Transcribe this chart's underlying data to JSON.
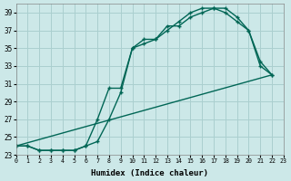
{
  "xlabel": "Humidex (Indice chaleur)",
  "bg_color": "#cce8e8",
  "grid_color": "#aacfcf",
  "line_color": "#006655",
  "xlim": [
    0,
    23
  ],
  "ylim": [
    23,
    40
  ],
  "xticks": [
    0,
    1,
    2,
    3,
    4,
    5,
    6,
    7,
    8,
    9,
    10,
    11,
    12,
    13,
    14,
    15,
    16,
    17,
    18,
    19,
    20,
    21,
    22,
    23
  ],
  "yticks": [
    23,
    25,
    27,
    29,
    31,
    33,
    35,
    37,
    39
  ],
  "line1_x": [
    0,
    1,
    2,
    3,
    4,
    5,
    6,
    7,
    8,
    9,
    10,
    11,
    12,
    13,
    14,
    15,
    16,
    17,
    18,
    19,
    20,
    21,
    22
  ],
  "line1_y": [
    24,
    24,
    23.5,
    23.5,
    23.5,
    23.5,
    24,
    24.5,
    27,
    30,
    35,
    36,
    36,
    37,
    38,
    39,
    39.5,
    39.5,
    39.5,
    38.5,
    37,
    33.5,
    32
  ],
  "line2_x": [
    0,
    1,
    2,
    3,
    4,
    5,
    6,
    7,
    8,
    9,
    10,
    11,
    12,
    13,
    14,
    15,
    16,
    17,
    18,
    19,
    20,
    21,
    22
  ],
  "line2_y": [
    24,
    24,
    23.5,
    23.5,
    23.5,
    23.5,
    24,
    27,
    30.5,
    30.5,
    35,
    35.5,
    36,
    37.5,
    37.5,
    38.5,
    39,
    39.5,
    39,
    38,
    37,
    33,
    32
  ],
  "line3_x": [
    0,
    22
  ],
  "line3_y": [
    24,
    32
  ]
}
